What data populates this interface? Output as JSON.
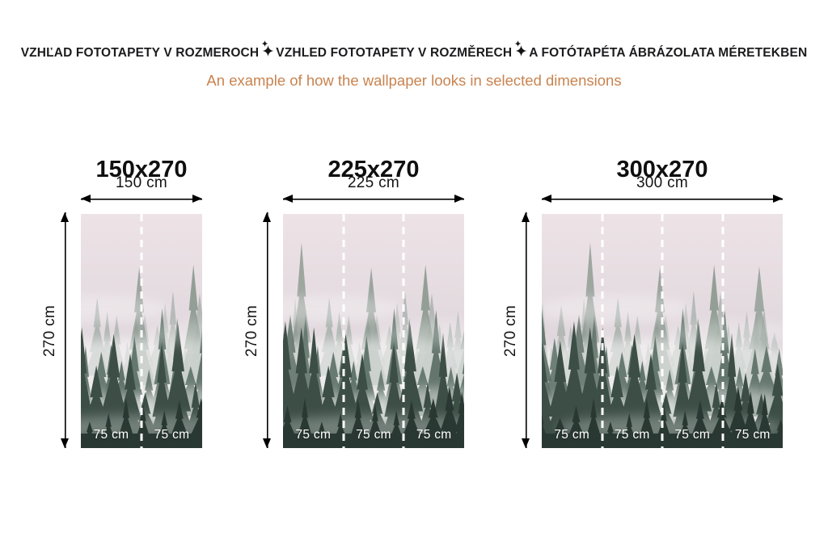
{
  "header": {
    "title_segments": [
      "VZHĽAD FOTOTAPETY V ROZMEROCH",
      "VZHLED FOTOTAPETY V ROZMĚRECH",
      "A FOTÓTAPÉTA ÁBRÁZOLATA MÉRETEKBEN"
    ],
    "separator_icon": "sparkle-icon",
    "subtitle": "An example of how the wallpaper looks in selected dimensions"
  },
  "colors": {
    "heading_text": "#1c1c1e",
    "subtitle_text": "#c9834f",
    "arrow": "#000000",
    "panel_label_text": "#ffffff",
    "fog": "#e6dce1",
    "forest_dark": "#2a3833"
  },
  "variants": [
    {
      "label": "150x270",
      "width_label": "150 cm",
      "height_label": "270 cm",
      "width_cm": 150,
      "height_cm": 270,
      "panels": [
        "75 cm",
        "75 cm"
      ]
    },
    {
      "label": "225x270",
      "width_label": "225 cm",
      "height_label": "270 cm",
      "width_cm": 225,
      "height_cm": 270,
      "panels": [
        "75 cm",
        "75 cm",
        "75 cm"
      ]
    },
    {
      "label": "300x270",
      "width_label": "300 cm",
      "height_label": "270 cm",
      "width_cm": 300,
      "height_cm": 270,
      "panels": [
        "75 cm",
        "75 cm",
        "75 cm",
        "75 cm"
      ]
    }
  ]
}
